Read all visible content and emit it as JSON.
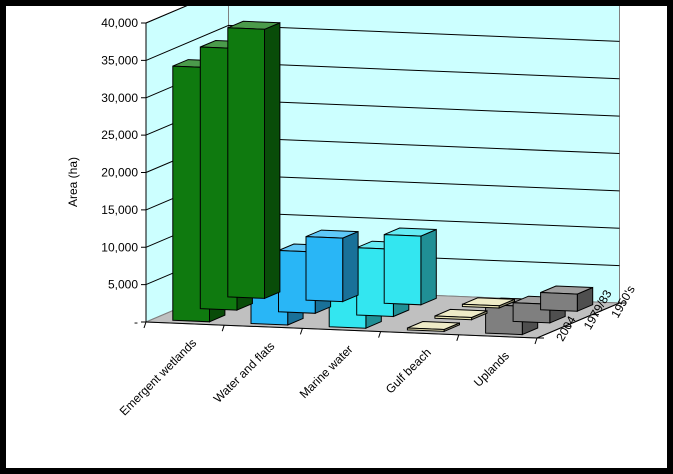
{
  "chart_data": {
    "type": "bar",
    "subtype": "3d-clustered-depth",
    "ylabel": "Area (ha)",
    "y_ticks": [
      "-",
      "5,000",
      "10,000",
      "15,000",
      "20,000",
      "25,000",
      "30,000",
      "35,000",
      "40,000"
    ],
    "ylim": [
      0,
      40000
    ],
    "categories": [
      "Emergent wetlands",
      "Water and flats",
      "Marine water",
      "Gulf beach",
      "Uplands"
    ],
    "series": [
      {
        "name": "1950's",
        "values": [
          36000,
          8500,
          9200,
          300,
          2300
        ]
      },
      {
        "name": "1979/83",
        "values": [
          35000,
          8200,
          9000,
          300,
          2500
        ]
      },
      {
        "name": "2004",
        "values": [
          34000,
          7600,
          9900,
          250,
          3800
        ]
      }
    ],
    "colors": {
      "Emergent wetlands": "#0f7a0f",
      "Water and flats": "#29b6f6",
      "Marine water": "#33e6f0",
      "Gulf beach": "#e8e4b4",
      "Uplands": "#7f7f7f"
    },
    "wall_color": "#ccffff",
    "floor_color": "#c0c0c0",
    "grid": true
  }
}
